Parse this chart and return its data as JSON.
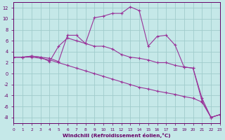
{
  "xlabel": "Windchill (Refroidissement éolien,°C)",
  "background_color": "#c5e8e8",
  "grid_color": "#a0cccc",
  "line_color": "#993399",
  "xlim": [
    0,
    23
  ],
  "ylim": [
    -9,
    13
  ],
  "xticks": [
    0,
    1,
    2,
    3,
    4,
    5,
    6,
    7,
    8,
    9,
    10,
    11,
    12,
    13,
    14,
    15,
    16,
    17,
    18,
    19,
    20,
    21,
    22,
    23
  ],
  "yticks": [
    -8,
    -6,
    -4,
    -2,
    0,
    2,
    4,
    6,
    8,
    10,
    12
  ],
  "series": [
    {
      "x": [
        0,
        1,
        2,
        3,
        4,
        5,
        6,
        7,
        8,
        9,
        10,
        11,
        12,
        13,
        14,
        15,
        16,
        17,
        18,
        19,
        20,
        21,
        22,
        23
      ],
      "y": [
        3.0,
        3.0,
        3.2,
        3.0,
        2.8,
        2.2,
        7.0,
        7.0,
        5.5,
        10.2,
        10.5,
        11.0,
        11.0,
        12.2,
        11.5,
        5.0,
        6.8,
        7.0,
        5.2,
        1.2,
        1.0,
        -5.0,
        -8.0,
        -7.5
      ]
    },
    {
      "x": [
        0,
        1,
        2,
        3,
        4,
        5,
        6,
        7,
        8,
        9,
        10,
        11,
        12,
        13,
        14,
        15,
        16,
        17,
        18,
        19,
        20,
        21,
        22,
        23
      ],
      "y": [
        3.0,
        3.0,
        3.2,
        3.0,
        2.2,
        5.0,
        6.5,
        6.0,
        5.5,
        5.0,
        5.0,
        4.5,
        3.5,
        3.0,
        2.8,
        2.5,
        2.0,
        2.0,
        1.5,
        1.2,
        1.0,
        -4.5,
        -8.0,
        -7.5
      ]
    },
    {
      "x": [
        0,
        1,
        2,
        3,
        4,
        5,
        6,
        7,
        8,
        9,
        10,
        11,
        12,
        13,
        14,
        15,
        16,
        17,
        18,
        19,
        20,
        21,
        22,
        23
      ],
      "y": [
        3.0,
        3.0,
        3.0,
        2.8,
        2.5,
        2.0,
        1.5,
        1.0,
        0.5,
        0.0,
        -0.5,
        -1.0,
        -1.5,
        -2.0,
        -2.5,
        -2.8,
        -3.2,
        -3.5,
        -3.8,
        -4.2,
        -4.5,
        -5.2,
        -8.0,
        -7.5
      ]
    }
  ]
}
